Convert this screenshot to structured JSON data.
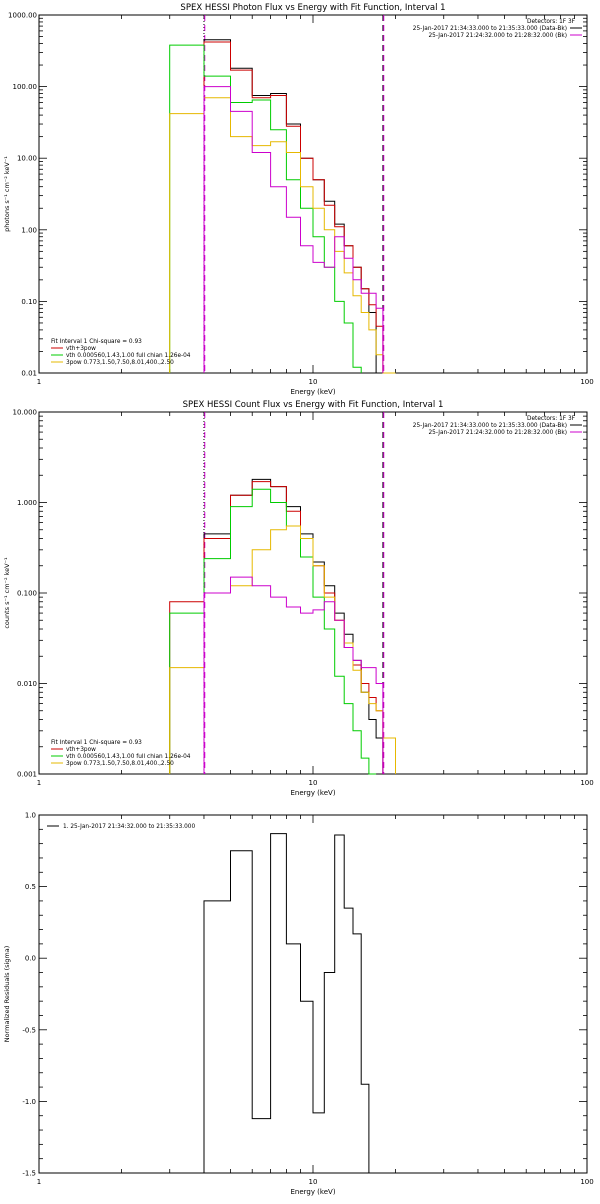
{
  "chart_data": [
    {
      "type": "line",
      "title": "SPEX HESSI Photon Flux vs Energy with Fit Function, Interval 1",
      "xlabel": "Energy (keV)",
      "ylabel": "photons s⁻¹ cm⁻² keV⁻¹",
      "xscale": "log",
      "yscale": "log",
      "xlim": [
        1,
        100
      ],
      "ylim": [
        0.01,
        1000
      ],
      "x_ticks": [
        "1",
        "10",
        "100"
      ],
      "y_ticks": [
        "0.01",
        "0.10",
        "1.00",
        "10.00",
        "100.00",
        "1000.00"
      ],
      "edges": [
        3,
        4,
        5,
        6,
        7,
        8,
        9,
        10,
        11,
        12,
        13,
        14,
        15,
        16,
        17,
        18,
        20,
        22,
        25
      ],
      "vlines": [
        {
          "x": 4,
          "style": "dotted",
          "color": "#000000"
        },
        {
          "x": 4,
          "style": "dashed",
          "color": "#cc00cc"
        },
        {
          "x": 18,
          "style": "dashed",
          "color": "#000000"
        },
        {
          "x": 18,
          "style": "dashed",
          "color": "#cc00cc"
        }
      ],
      "legend_top": {
        "heading": "Detectors: 1F 3F",
        "rows": [
          {
            "text": "25-Jan-2017 21:34:33.000 to 21:35:33.000 (Data-Bk)",
            "color": "#000000"
          },
          {
            "text": "25-Jan-2017 21:24:32.000 to 21:28:32.000 (Bk)",
            "color": "#cc00cc"
          }
        ]
      },
      "legend_bottom": {
        "heading": "Fit Interval 1   Chi-square = 0.93",
        "rows": [
          {
            "text": "vth+3pow",
            "color": "#cc0000"
          },
          {
            "text": "vth 0.000560,1.43,1.00  full chian 1.26e-04",
            "color": "#00cc00"
          },
          {
            "text": "3pow 0.773,1.50,7.50,8.01,400.,2.50",
            "color": "#e6b800"
          }
        ]
      },
      "series": [
        {
          "color": "#000000",
          "range": [
            1,
            17
          ],
          "values": [
            450,
            180,
            75,
            80,
            30,
            10,
            5,
            2.5,
            1.2,
            0.6,
            0.3,
            0.15,
            0.07
          ]
        },
        {
          "color": "#cc0000",
          "range": [
            1,
            18
          ],
          "values": [
            420,
            170,
            70,
            75,
            28,
            10,
            5,
            2.2,
            1.1,
            0.6,
            0.3,
            0.15,
            0.09,
            0.045
          ]
        },
        {
          "color": "#00cc00",
          "range": [
            0,
            15
          ],
          "values": [
            380,
            140,
            60,
            65,
            25,
            5,
            2,
            0.8,
            0.3,
            0.1,
            0.05,
            0.012
          ]
        },
        {
          "color": "#e6b800",
          "range": [
            0,
            18
          ],
          "values": [
            42,
            70,
            20,
            15,
            17,
            12,
            4,
            2,
            1,
            0.5,
            0.25,
            0.12,
            0.07,
            0.04,
            0.018,
            0.01
          ]
        },
        {
          "color": "#cc00cc",
          "range": [
            1,
            15
          ],
          "values": [
            100,
            45,
            12,
            4,
            1.5,
            0.6,
            0.35,
            0.3,
            0.8,
            0.4,
            0.2,
            0.13,
            0.13,
            0.08
          ]
        }
      ]
    },
    {
      "type": "line",
      "title": "SPEX HESSI Count Flux vs Energy with Fit Function, Interval 1",
      "xlabel": "Energy (keV)",
      "ylabel": "counts s⁻¹ cm⁻² keV⁻¹",
      "xscale": "log",
      "yscale": "log",
      "xlim": [
        1,
        100
      ],
      "ylim": [
        0.001,
        10
      ],
      "x_ticks": [
        "1",
        "10",
        "100"
      ],
      "y_ticks": [
        "0.001",
        "0.010",
        "0.100",
        "1.000",
        "10.000"
      ],
      "edges": [
        3,
        4,
        5,
        6,
        7,
        8,
        9,
        10,
        11,
        12,
        13,
        14,
        15,
        16,
        17,
        18,
        20,
        22,
        25
      ],
      "vlines": [
        {
          "x": 4,
          "style": "dotted",
          "color": "#000000"
        },
        {
          "x": 4,
          "style": "dashed",
          "color": "#cc00cc"
        },
        {
          "x": 18,
          "style": "dashed",
          "color": "#000000"
        },
        {
          "x": 18,
          "style": "dashed",
          "color": "#cc00cc"
        }
      ],
      "legend_top": {
        "heading": "Detectors: 1F 3F",
        "rows": [
          {
            "text": "25-Jan-2017 21:34:33.000 to 21:35:33.000 (Data-Bk)",
            "color": "#000000"
          },
          {
            "text": "25-Jan-2017 21:24:32.000 to 21:28:32.000 (Bk)",
            "color": "#cc00cc"
          }
        ]
      },
      "legend_bottom": {
        "heading": "Fit Interval 1   Chi-square = 0.93",
        "rows": [
          {
            "text": "vth+3pow",
            "color": "#cc0000"
          },
          {
            "text": "vth 0.000560,1.43,1.00  full chian 1.26e-04",
            "color": "#00cc00"
          },
          {
            "text": "3pow 0.773,1.50,7.50,8.01,400.,2.50",
            "color": "#e6b800"
          }
        ]
      },
      "series": [
        {
          "color": "#000000",
          "range": [
            1,
            17
          ],
          "values": [
            0.45,
            1.2,
            1.8,
            1.5,
            0.9,
            0.45,
            0.22,
            0.12,
            0.06,
            0.035,
            0.018,
            0.008,
            0.004,
            0.0025
          ]
        },
        {
          "color": "#cc0000",
          "range": [
            0,
            18
          ],
          "values": [
            0.08,
            0.4,
            1.2,
            1.7,
            1.5,
            0.8,
            0.4,
            0.2,
            0.1,
            0.05,
            0.025,
            0.016,
            0.01,
            0.007,
            0.005
          ]
        },
        {
          "color": "#00cc00",
          "range": [
            0,
            15
          ],
          "values": [
            0.06,
            0.24,
            0.9,
            1.4,
            1.0,
            0.55,
            0.25,
            0.09,
            0.04,
            0.012,
            0.006,
            0.003,
            0.0015,
            0.001
          ]
        },
        {
          "color": "#e6b800",
          "range": [
            0,
            18
          ],
          "values": [
            0.015,
            0.1,
            0.12,
            0.3,
            0.5,
            0.55,
            0.4,
            0.2,
            0.09,
            0.05,
            0.028,
            0.014,
            0.008,
            0.006,
            0.005,
            0.0025
          ]
        },
        {
          "color": "#cc00cc",
          "range": [
            1,
            15
          ],
          "values": [
            0.1,
            0.15,
            0.12,
            0.09,
            0.07,
            0.06,
            0.065,
            0.08,
            0.05,
            0.025,
            0.018,
            0.015,
            0.015,
            0.01
          ]
        }
      ]
    },
    {
      "type": "line",
      "title": "",
      "xlabel": "Energy (keV)",
      "ylabel": "Normalized Residuals (sigma)",
      "xscale": "log",
      "yscale": "linear",
      "xlim": [
        1,
        100
      ],
      "ylim": [
        -1.5,
        1.0
      ],
      "x_ticks": [
        "1",
        "10",
        "100"
      ],
      "y_ticks": [
        "-1.5",
        "-1.0",
        "-0.5",
        "0.0",
        "0.5",
        "1.0"
      ],
      "edges": [
        4,
        5,
        6,
        7,
        8,
        9,
        10,
        11,
        12,
        13,
        14,
        15,
        16,
        17,
        18
      ],
      "legend_top": {
        "heading": "",
        "rows": [
          {
            "text": "1. 25-Jan-2017 21:34:32.000 to 21:35:33.000",
            "color": "#000000"
          }
        ]
      },
      "series": [
        {
          "color": "#000000",
          "range": [
            0,
            13
          ],
          "values": [
            0.4,
            0.75,
            -1.12,
            0.87,
            0.1,
            -0.3,
            -1.08,
            -0.1,
            0.86,
            0.35,
            0.17,
            -0.88
          ]
        }
      ]
    }
  ]
}
